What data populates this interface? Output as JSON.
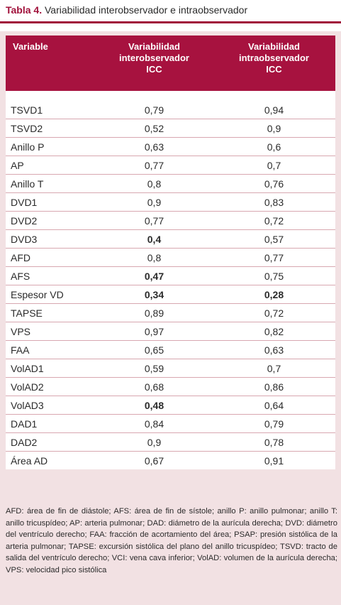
{
  "caption": {
    "label": "Tabla 4.",
    "text": "Variabilidad interobservador e intraobservador"
  },
  "headers": {
    "variable": "Variable",
    "inter": [
      "Variabilidad",
      "interobservador",
      "ICC"
    ],
    "intra": [
      "Variabilidad",
      "intraobservador",
      "ICC"
    ]
  },
  "rows": [
    {
      "variable": "TSVD1",
      "inter": "0,79",
      "intra": "0,94",
      "inter_bold": false,
      "intra_bold": false
    },
    {
      "variable": "TSVD2",
      "inter": "0,52",
      "intra": "0,9",
      "inter_bold": false,
      "intra_bold": false
    },
    {
      "variable": "Anillo P",
      "inter": "0,63",
      "intra": "0,6",
      "inter_bold": false,
      "intra_bold": false
    },
    {
      "variable": "AP",
      "inter": "0,77",
      "intra": "0,7",
      "inter_bold": false,
      "intra_bold": false
    },
    {
      "variable": "Anillo T",
      "inter": "0,8",
      "intra": "0,76",
      "inter_bold": false,
      "intra_bold": false
    },
    {
      "variable": "DVD1",
      "inter": "0,9",
      "intra": "0,83",
      "inter_bold": false,
      "intra_bold": false
    },
    {
      "variable": "DVD2",
      "inter": "0,77",
      "intra": "0,72",
      "inter_bold": false,
      "intra_bold": false
    },
    {
      "variable": "DVD3",
      "inter": "0,4",
      "intra": "0,57",
      "inter_bold": true,
      "intra_bold": false
    },
    {
      "variable": "AFD",
      "inter": "0,8",
      "intra": "0,77",
      "inter_bold": false,
      "intra_bold": false
    },
    {
      "variable": "AFS",
      "inter": "0,47",
      "intra": "0,75",
      "inter_bold": true,
      "intra_bold": false
    },
    {
      "variable": "Espesor VD",
      "inter": "0,34",
      "intra": "0,28",
      "inter_bold": true,
      "intra_bold": true
    },
    {
      "variable": "TAPSE",
      "inter": "0,89",
      "intra": "0,72",
      "inter_bold": false,
      "intra_bold": false
    },
    {
      "variable": "VPS",
      "inter": "0,97",
      "intra": "0,82",
      "inter_bold": false,
      "intra_bold": false
    },
    {
      "variable": "FAA",
      "inter": "0,65",
      "intra": "0,63",
      "inter_bold": false,
      "intra_bold": false
    },
    {
      "variable": "VolAD1",
      "inter": "0,59",
      "intra": "0,7",
      "inter_bold": false,
      "intra_bold": false
    },
    {
      "variable": "VolAD2",
      "inter": "0,68",
      "intra": "0,86",
      "inter_bold": false,
      "intra_bold": false
    },
    {
      "variable": "VolAD3",
      "inter": "0,48",
      "intra": "0,64",
      "inter_bold": true,
      "intra_bold": false
    },
    {
      "variable": "DAD1",
      "inter": "0,84",
      "intra": "0,79",
      "inter_bold": false,
      "intra_bold": false
    },
    {
      "variable": "DAD2",
      "inter": "0,9",
      "intra": "0,78",
      "inter_bold": false,
      "intra_bold": false
    },
    {
      "variable": "Área AD",
      "inter": "0,67",
      "intra": "0,91",
      "inter_bold": false,
      "intra_bold": false
    }
  ],
  "footnote": "AFD: área de fin de diástole; AFS: área de fin de sístole; anillo P: anillo pulmonar; anillo T: anillo tricuspídeo; AP: arteria pulmonar; DAD: diámetro de la aurícula derecha; DVD: diámetro del ventrículo derecho; FAA: fracción de acortamiento del área; PSAP: presión sistólica de la arteria pulmonar; TAPSE: excursión sistólica del plano del anillo tricuspídeo; TSVD: tracto de salida del ventrículo derecho; VCI: vena cava inferior; VolAD: volumen de la aurícula derecha; VPS: velocidad pico sistólica",
  "colors": {
    "accent": "#a7123f",
    "panel": "#f2e1e3",
    "row_border": "#d8a7b0"
  }
}
